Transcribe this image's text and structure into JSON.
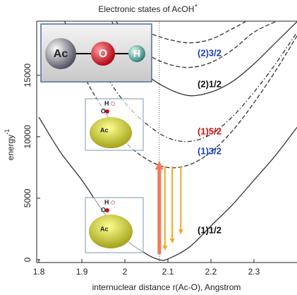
{
  "chart_data": {
    "type": "line",
    "title": "Electronic states of AcOH",
    "title_superscript": "+",
    "xlabel": "internuclear distance r(Ac-O), Angstrom",
    "ylabel": "energy",
    "ylabel_superscript": "-1",
    "xlim": [
      1.795,
      2.4
    ],
    "ylim": [
      -230,
      19400
    ],
    "xticks": [
      1.8,
      1.9,
      2,
      2.1,
      2.2,
      2.3
    ],
    "yticks": [
      0,
      5000,
      10000,
      15000
    ],
    "marker_x": 2.08,
    "series": [
      {
        "name": "(1)1/2",
        "color": "#333333",
        "dash": "solid",
        "label_color": "#111111",
        "x": [
          1.8,
          1.85,
          1.9,
          1.95,
          2.0,
          2.05,
          2.08,
          2.1,
          2.15,
          2.2,
          2.25,
          2.3,
          2.35,
          2.4
        ],
        "values": [
          11600,
          8760,
          6470,
          3900,
          1720,
          460,
          0,
          60,
          1030,
          2750,
          4470,
          6470,
          8480,
          10770
        ]
      },
      {
        "name": "(1)3/2",
        "color": "#333333",
        "dash": "dashed",
        "label_color": "#1a3fbf",
        "x": [
          1.86,
          1.9,
          1.95,
          2.0,
          2.05,
          2.1,
          2.15,
          2.2,
          2.25,
          2.3,
          2.35,
          2.4
        ],
        "values": [
          19400,
          15350,
          12200,
          9620,
          8190,
          7500,
          7730,
          8760,
          10480,
          12770,
          15350,
          18210
        ]
      },
      {
        "name": "(1)5/2",
        "color": "#333333",
        "dash": "dashdot",
        "label_color": "#d01010",
        "x": [
          1.9,
          1.95,
          2.0,
          2.05,
          2.1,
          2.15,
          2.2,
          2.25,
          2.3,
          2.35,
          2.4
        ],
        "values": [
          18790,
          15350,
          12770,
          11050,
          9910,
          9620,
          10200,
          11630,
          13630,
          15920,
          18500
        ]
      },
      {
        "name": "(2)1/2",
        "color": "#333333",
        "dash": "solid",
        "label_color": "#111111",
        "x": [
          1.97,
          2.0,
          2.05,
          2.1,
          2.15,
          2.2,
          2.25,
          2.3,
          2.35,
          2.4
        ],
        "values": [
          19360,
          17070,
          15060,
          13920,
          13340,
          13630,
          14490,
          15920,
          17640,
          19360
        ]
      },
      {
        "name": "(2)3/2",
        "color": "#333333",
        "dash": "dashed",
        "label_color": "#1a3fbf",
        "x": [
          1.98,
          2.0,
          2.05,
          2.1,
          2.15,
          2.2,
          2.25,
          2.3,
          2.35
        ],
        "values": [
          19360,
          18500,
          16780,
          15920,
          15640,
          16040,
          17070,
          18500,
          19360
        ]
      },
      {
        "color": "#333333",
        "dash": "dashed",
        "x": [
          2.05,
          2.1,
          2.15,
          2.2,
          2.25,
          2.28
        ],
        "values": [
          18500,
          17930,
          17640,
          17930,
          18790,
          19360
        ]
      }
    ],
    "arrows": [
      {
        "x": 2.08,
        "from": 460,
        "to": 8020,
        "color": "#f07a5a"
      },
      {
        "x": 2.093,
        "from": 7600,
        "to": 745,
        "color": "#f5a623"
      },
      {
        "x": 2.11,
        "from": 7600,
        "to": 1320,
        "color": "#f5a623"
      },
      {
        "x": 2.13,
        "from": 7600,
        "to": 2060,
        "color": "#f5a623"
      }
    ]
  },
  "insets": {
    "molecule": [
      "Ac",
      "O",
      "H"
    ],
    "orbital_upper": [
      "H",
      "O",
      "Ac"
    ],
    "orbital_lower": [
      "H",
      "O",
      "Ac"
    ]
  }
}
